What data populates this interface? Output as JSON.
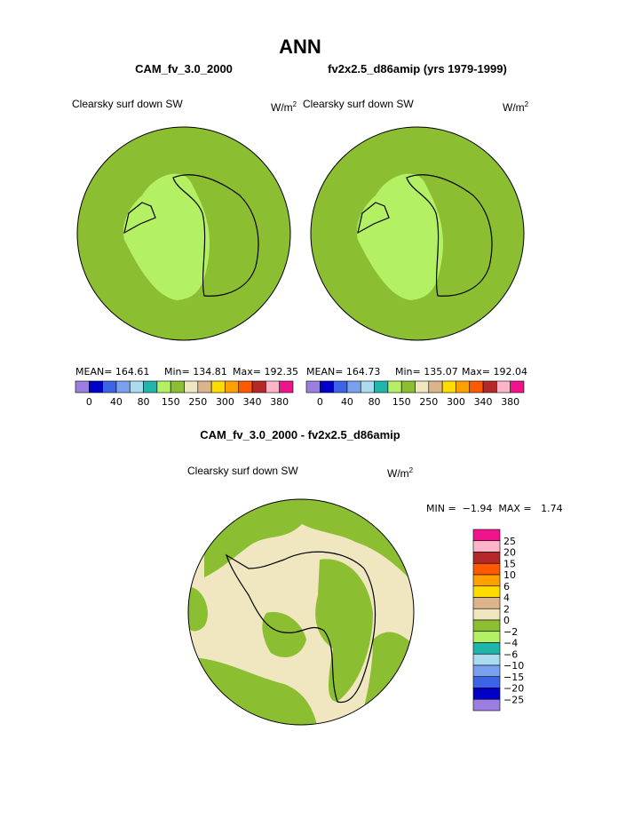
{
  "title": "ANN",
  "panels": [
    {
      "case": "CAM_fv_3.0_2000",
      "field": "Clearsky surf down SW",
      "units": {
        "base": "W/m",
        "exp": "2"
      },
      "stats": [
        "MEAN= 164.61",
        "Min= 134.81",
        "Max= 192.35"
      ]
    },
    {
      "case": "fv2x2.5_d86amip (yrs 1979-1999)",
      "field": "Clearsky surf down SW",
      "units": {
        "base": "W/m",
        "exp": "2"
      },
      "stats": [
        "MEAN= 164.73",
        "Min= 135.07",
        "Max= 192.04"
      ]
    }
  ],
  "colorbar": {
    "colors": [
      "#9c7ee0",
      "#0000c8",
      "#3c64e6",
      "#7aa0f0",
      "#aadcf0",
      "#20b4aa",
      "#b4f064",
      "#8cbe32",
      "#f0e6c0",
      "#dcb48c",
      "#ffdc00",
      "#ffa000",
      "#ff5a00",
      "#b42828",
      "#ffb4c8",
      "#f0148c"
    ],
    "labels": [
      "0",
      "40",
      "80",
      "150",
      "250",
      "300",
      "340",
      "380"
    ]
  },
  "difference": {
    "title": "CAM_fv_3.0_2000 - fv2x2.5_d86amip",
    "field": "Clearsky surf down SW",
    "units": {
      "base": "W/m",
      "exp": "2"
    },
    "stats": "MIN =  −1.94  MAX =   1.74",
    "colorbar": {
      "colors": [
        "#f0148c",
        "#ffb4c8",
        "#b42828",
        "#ff5a00",
        "#ffa000",
        "#ffdc00",
        "#dcb48c",
        "#f0e6c0",
        "#8cbe32",
        "#b4f064",
        "#20b4aa",
        "#aadcf0",
        "#7aa0f0",
        "#3c64e6",
        "#0000c8",
        "#9c7ee0"
      ],
      "labels": [
        "25",
        "20",
        "15",
        "10",
        "6",
        "4",
        "2",
        "0",
        "−2",
        "−4",
        "−6",
        "−10",
        "−15",
        "−20",
        "−25"
      ]
    }
  }
}
